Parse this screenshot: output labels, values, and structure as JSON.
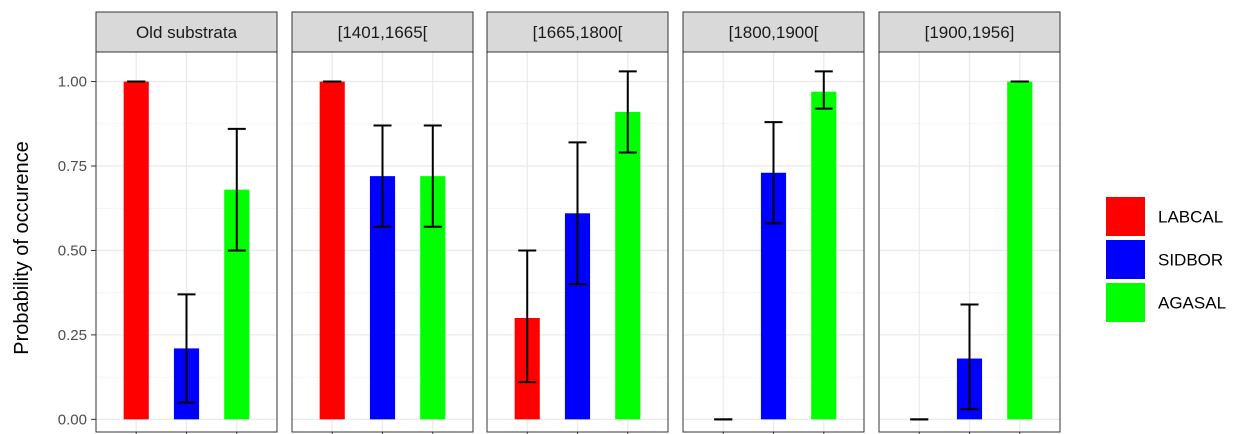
{
  "chart_data": {
    "type": "bar",
    "ylabel": "Probability of occurence",
    "xlabel": "",
    "ylim": [
      -0.0375,
      1.0875
    ],
    "yticks": [
      0.0,
      0.25,
      0.5,
      0.75,
      1.0
    ],
    "ytick_labels": [
      "0.00",
      "0.25",
      "0.50",
      "0.75",
      "1.00"
    ],
    "grid": true,
    "legend_position": "right",
    "series": [
      {
        "name": "LABCAL",
        "color": "#ff0000"
      },
      {
        "name": "SIDBOR",
        "color": "#0000ff"
      },
      {
        "name": "AGASAL",
        "color": "#00ff00"
      }
    ],
    "panels": [
      {
        "label": "Old substrata",
        "values": [
          1.0,
          0.21,
          0.68
        ],
        "error_low": [
          1.0,
          0.05,
          0.5
        ],
        "error_high": [
          1.0,
          0.37,
          0.86
        ]
      },
      {
        "label": "[1401,1665[",
        "values": [
          1.0,
          0.72,
          0.72
        ],
        "error_low": [
          1.0,
          0.57,
          0.57
        ],
        "error_high": [
          1.0,
          0.87,
          0.87
        ]
      },
      {
        "label": "[1665,1800[",
        "values": [
          0.3,
          0.61,
          0.91
        ],
        "error_low": [
          0.11,
          0.4,
          0.79
        ],
        "error_high": [
          0.5,
          0.82,
          1.03
        ]
      },
      {
        "label": "[1800,1900[",
        "values": [
          0.0,
          0.73,
          0.97
        ],
        "error_low": [
          0.0,
          0.58,
          0.92
        ],
        "error_high": [
          0.0,
          0.88,
          1.03
        ]
      },
      {
        "label": "[1900,1956]",
        "values": [
          0.0,
          0.18,
          1.0
        ],
        "error_low": [
          0.0,
          0.03,
          1.0
        ],
        "error_high": [
          0.0,
          0.34,
          1.0
        ]
      }
    ]
  }
}
